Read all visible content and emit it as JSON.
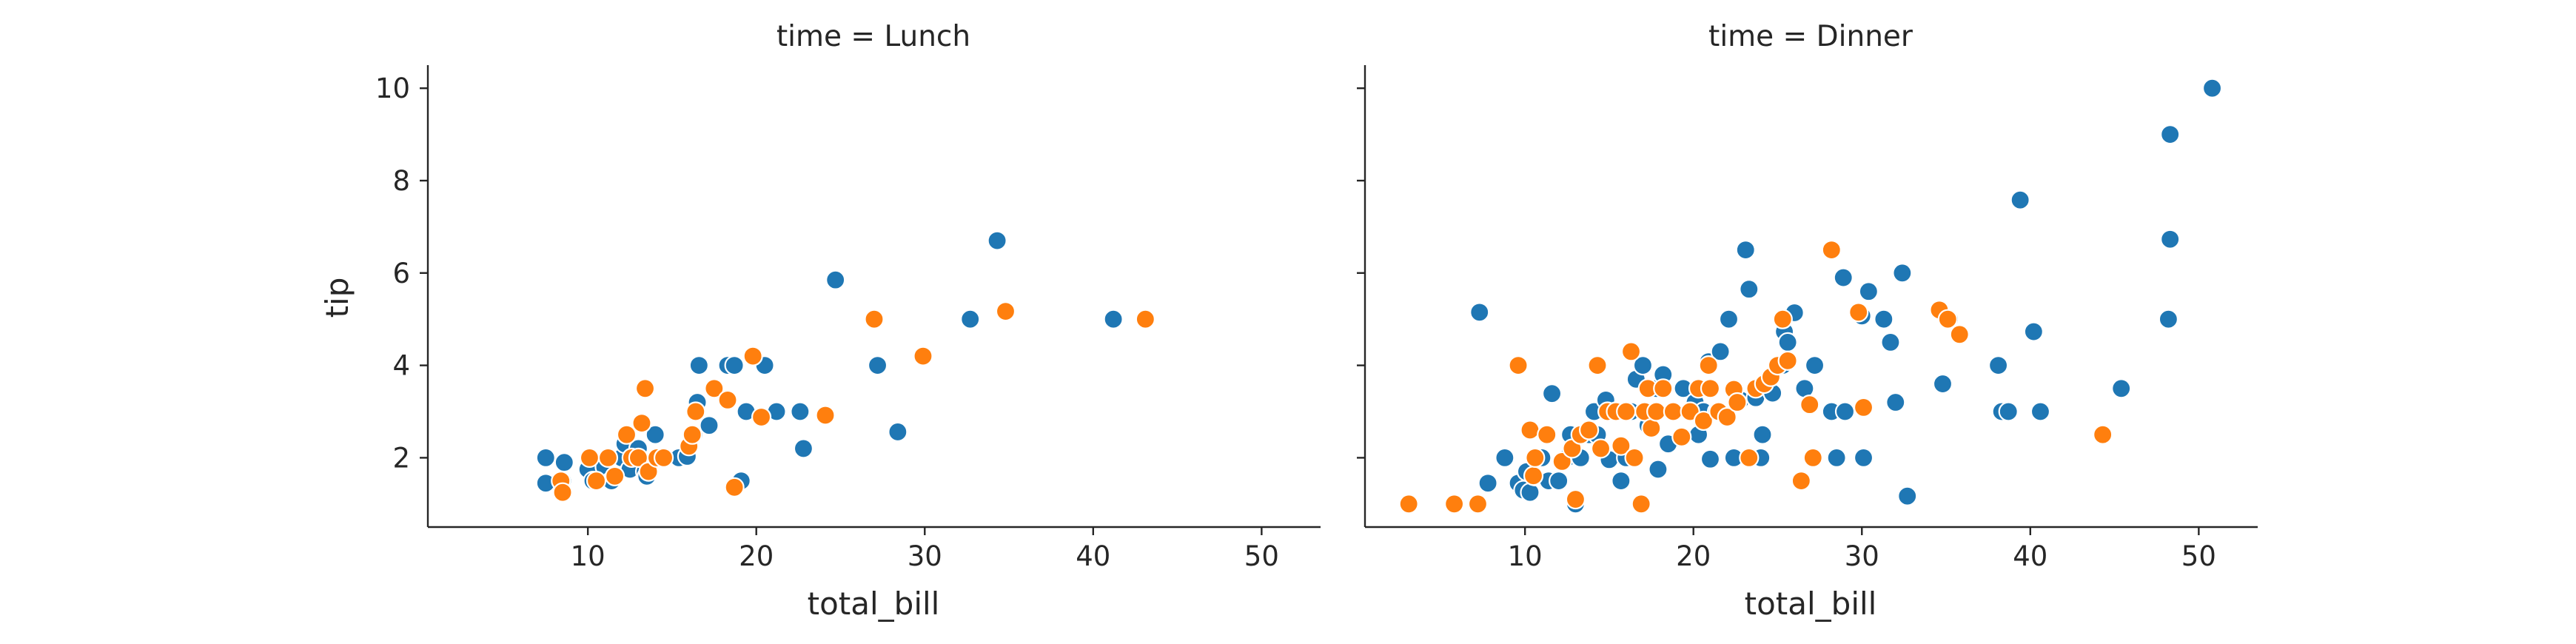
{
  "chart_data": [
    {
      "type": "scatter",
      "title": "time = Lunch",
      "xlabel": "total_bill",
      "ylabel": "tip",
      "xlim": [
        0.5,
        53.5
      ],
      "ylim": [
        0.5,
        10.5
      ],
      "xticks": [
        10,
        20,
        30,
        40,
        50
      ],
      "yticks": [
        2,
        4,
        6,
        8,
        10
      ],
      "grid": false,
      "series": [
        {
          "color": "#1f77b4",
          "points": [
            [
              7.5,
              2.0
            ],
            [
              7.5,
              1.45
            ],
            [
              8.5,
              1.5
            ],
            [
              8.6,
              1.9
            ],
            [
              10.0,
              1.75
            ],
            [
              10.3,
              1.5
            ],
            [
              11.0,
              1.8
            ],
            [
              11.4,
              1.5
            ],
            [
              12.0,
              2.0
            ],
            [
              12.2,
              2.3
            ],
            [
              12.5,
              1.75
            ],
            [
              13.0,
              2.2
            ],
            [
              13.4,
              1.7
            ],
            [
              13.5,
              1.6
            ],
            [
              14.0,
              2.5
            ],
            [
              14.4,
              2.0
            ],
            [
              15.4,
              2.0
            ],
            [
              15.9,
              2.03
            ],
            [
              16.3,
              2.5
            ],
            [
              16.5,
              3.2
            ],
            [
              16.6,
              4.0
            ],
            [
              17.2,
              2.7
            ],
            [
              18.3,
              4.0
            ],
            [
              18.7,
              4.0
            ],
            [
              19.1,
              1.5
            ],
            [
              19.4,
              3.0
            ],
            [
              20.5,
              4.0
            ],
            [
              21.2,
              3.0
            ],
            [
              22.6,
              3.0
            ],
            [
              22.8,
              2.2
            ],
            [
              24.7,
              5.85
            ],
            [
              27.2,
              4.0
            ],
            [
              28.4,
              2.56
            ],
            [
              32.7,
              5.0
            ],
            [
              34.3,
              6.7
            ],
            [
              41.2,
              5.0
            ]
          ]
        },
        {
          "color": "#ff7f0e",
          "points": [
            [
              8.4,
              1.5
            ],
            [
              8.5,
              1.25
            ],
            [
              10.1,
              2.0
            ],
            [
              10.5,
              1.5
            ],
            [
              11.2,
              2.0
            ],
            [
              11.6,
              1.6
            ],
            [
              12.3,
              2.5
            ],
            [
              12.6,
              2.0
            ],
            [
              13.0,
              2.0
            ],
            [
              13.2,
              2.75
            ],
            [
              13.4,
              3.5
            ],
            [
              13.6,
              1.7
            ],
            [
              14.1,
              2.0
            ],
            [
              14.5,
              2.0
            ],
            [
              16.0,
              2.25
            ],
            [
              16.2,
              2.5
            ],
            [
              16.4,
              3.0
            ],
            [
              17.5,
              3.5
            ],
            [
              18.3,
              3.25
            ],
            [
              18.7,
              1.36
            ],
            [
              19.8,
              4.2
            ],
            [
              20.3,
              2.88
            ],
            [
              24.1,
              2.92
            ],
            [
              27.0,
              5.0
            ],
            [
              29.9,
              4.2
            ],
            [
              34.8,
              5.17
            ],
            [
              43.1,
              5.0
            ]
          ]
        }
      ]
    },
    {
      "type": "scatter",
      "title": "time = Dinner",
      "xlabel": "total_bill",
      "ylabel": "",
      "xlim": [
        0.5,
        53.5
      ],
      "ylim": [
        0.5,
        10.5
      ],
      "xticks": [
        10,
        20,
        30,
        40,
        50
      ],
      "yticks": [
        2,
        4,
        6,
        8,
        10
      ],
      "grid": false,
      "series": [
        {
          "color": "#1f77b4",
          "points": [
            [
              7.3,
              5.15
            ],
            [
              7.8,
              1.45
            ],
            [
              8.8,
              2.0
            ],
            [
              9.6,
              1.45
            ],
            [
              9.9,
              1.3
            ],
            [
              10.1,
              1.7
            ],
            [
              10.3,
              1.25
            ],
            [
              10.6,
              1.6
            ],
            [
              11.0,
              2.0
            ],
            [
              11.4,
              1.5
            ],
            [
              11.6,
              3.39
            ],
            [
              12.0,
              1.5
            ],
            [
              12.5,
              2.0
            ],
            [
              12.7,
              2.5
            ],
            [
              13.0,
              1.0
            ],
            [
              13.3,
              2.0
            ],
            [
              13.8,
              2.5
            ],
            [
              14.1,
              3.0
            ],
            [
              14.3,
              2.5
            ],
            [
              14.8,
              3.25
            ],
            [
              15.0,
              1.96
            ],
            [
              15.4,
              3.0
            ],
            [
              15.7,
              1.5
            ],
            [
              16.0,
              2.0
            ],
            [
              16.3,
              3.0
            ],
            [
              16.6,
              3.7
            ],
            [
              17.0,
              4.0
            ],
            [
              17.3,
              2.7
            ],
            [
              17.8,
              3.5
            ],
            [
              17.9,
              1.75
            ],
            [
              18.2,
              3.8
            ],
            [
              18.5,
              2.3
            ],
            [
              18.9,
              3.0
            ],
            [
              19.4,
              3.5
            ],
            [
              19.8,
              3.0
            ],
            [
              20.1,
              3.2
            ],
            [
              20.3,
              2.5
            ],
            [
              20.6,
              3.0
            ],
            [
              20.9,
              4.08
            ],
            [
              21.0,
              1.97
            ],
            [
              21.4,
              3.0
            ],
            [
              21.6,
              4.3
            ],
            [
              22.1,
              5.0
            ],
            [
              22.4,
              2.0
            ],
            [
              22.8,
              3.25
            ],
            [
              23.1,
              6.5
            ],
            [
              23.3,
              5.65
            ],
            [
              23.7,
              3.3
            ],
            [
              24.0,
              2.0
            ],
            [
              24.1,
              2.5
            ],
            [
              24.3,
              3.6
            ],
            [
              24.7,
              3.4
            ],
            [
              25.3,
              4.0
            ],
            [
              25.4,
              4.73
            ],
            [
              25.6,
              4.5
            ],
            [
              26.0,
              5.14
            ],
            [
              26.6,
              3.5
            ],
            [
              27.2,
              4.0
            ],
            [
              28.2,
              3.0
            ],
            [
              28.5,
              2.0
            ],
            [
              28.9,
              5.9
            ],
            [
              29.0,
              3.0
            ],
            [
              30.0,
              5.07
            ],
            [
              30.1,
              2.0
            ],
            [
              30.4,
              5.6
            ],
            [
              31.3,
              5.0
            ],
            [
              31.7,
              4.5
            ],
            [
              32.0,
              3.2
            ],
            [
              32.4,
              6.0
            ],
            [
              32.7,
              1.17
            ],
            [
              34.8,
              3.6
            ],
            [
              35.2,
              5.0
            ],
            [
              38.1,
              4.0
            ],
            [
              38.3,
              3.0
            ],
            [
              38.7,
              3.0
            ],
            [
              39.4,
              7.58
            ],
            [
              40.2,
              4.73
            ],
            [
              40.6,
              3.0
            ],
            [
              45.4,
              3.5
            ],
            [
              48.2,
              5.0
            ],
            [
              48.3,
              6.73
            ],
            [
              48.3,
              9.0
            ],
            [
              50.8,
              10.0
            ]
          ]
        },
        {
          "color": "#ff7f0e",
          "points": [
            [
              3.1,
              1.0
            ],
            [
              5.8,
              1.0
            ],
            [
              7.2,
              1.0
            ],
            [
              9.6,
              4.0
            ],
            [
              10.3,
              2.6
            ],
            [
              10.5,
              1.61
            ],
            [
              10.6,
              2.0
            ],
            [
              11.3,
              2.5
            ],
            [
              12.2,
              1.92
            ],
            [
              12.8,
              2.2
            ],
            [
              13.0,
              1.1
            ],
            [
              13.3,
              2.5
            ],
            [
              13.8,
              2.6
            ],
            [
              14.3,
              4.0
            ],
            [
              14.5,
              2.2
            ],
            [
              14.9,
              3.0
            ],
            [
              15.4,
              3.0
            ],
            [
              15.7,
              2.26
            ],
            [
              16.0,
              3.0
            ],
            [
              16.3,
              4.3
            ],
            [
              16.5,
              2.0
            ],
            [
              16.9,
              1.0
            ],
            [
              17.1,
              3.0
            ],
            [
              17.3,
              3.5
            ],
            [
              17.5,
              2.64
            ],
            [
              17.8,
              3.0
            ],
            [
              18.2,
              3.5
            ],
            [
              18.8,
              3.0
            ],
            [
              19.3,
              2.45
            ],
            [
              19.8,
              3.0
            ],
            [
              20.3,
              3.5
            ],
            [
              20.6,
              2.8
            ],
            [
              20.9,
              4.0
            ],
            [
              21.0,
              3.5
            ],
            [
              21.5,
              3.0
            ],
            [
              22.0,
              2.88
            ],
            [
              22.4,
              3.48
            ],
            [
              22.6,
              3.2
            ],
            [
              23.3,
              2.0
            ],
            [
              23.7,
              3.5
            ],
            [
              24.2,
              3.6
            ],
            [
              24.6,
              3.75
            ],
            [
              25.0,
              4.0
            ],
            [
              25.3,
              5.0
            ],
            [
              25.6,
              4.1
            ],
            [
              26.4,
              1.5
            ],
            [
              26.9,
              3.15
            ],
            [
              27.1,
              2.0
            ],
            [
              28.2,
              6.5
            ],
            [
              29.8,
              5.15
            ],
            [
              30.1,
              3.09
            ],
            [
              34.6,
              5.2
            ],
            [
              35.1,
              5.0
            ],
            [
              35.8,
              4.67
            ],
            [
              44.3,
              2.5
            ]
          ]
        }
      ]
    }
  ]
}
